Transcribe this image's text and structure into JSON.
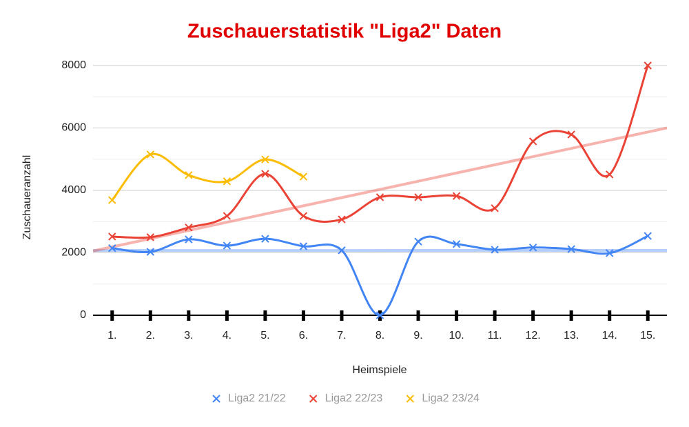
{
  "chart_data": {
    "type": "line",
    "title": "Zuschauerstatistik \"Liga2\" Daten",
    "x_label": "Heimspiele",
    "y_label": "Zuschaueranzahl",
    "categories": [
      "1.",
      "2.",
      "3.",
      "4.",
      "5.",
      "6.",
      "7.",
      "8.",
      "9.",
      "10.",
      "11.",
      "12.",
      "13.",
      "14.",
      "15."
    ],
    "series": [
      {
        "name": "Liga2 21/22",
        "color": "#4285f4",
        "values": [
          2150,
          2030,
          2430,
          2230,
          2450,
          2210,
          2080,
          0,
          2360,
          2280,
          2100,
          2170,
          2120,
          1990,
          2540
        ]
      },
      {
        "name": "Liga2 22/23",
        "color": "#ea4335",
        "values": [
          2520,
          2500,
          2810,
          3180,
          4530,
          3180,
          3070,
          3780,
          3780,
          3820,
          3430,
          5570,
          5790,
          4510,
          8000
        ]
      },
      {
        "name": "Liga2 23/24",
        "color": "#fbbc04",
        "values": [
          3690,
          5150,
          4490,
          4290,
          4990,
          4440,
          null,
          null,
          null,
          null,
          null,
          null,
          null,
          null,
          null
        ]
      }
    ],
    "trendlines": [
      "Liga2 21/22",
      "Liga2 22/23"
    ],
    "ylim": [
      0,
      8000
    ],
    "yticks": [
      0,
      2000,
      4000,
      6000,
      8000
    ],
    "minor_yticks": [
      1000,
      3000,
      5000,
      7000
    ],
    "grid": true,
    "legend": "bottom",
    "smooth": true
  }
}
